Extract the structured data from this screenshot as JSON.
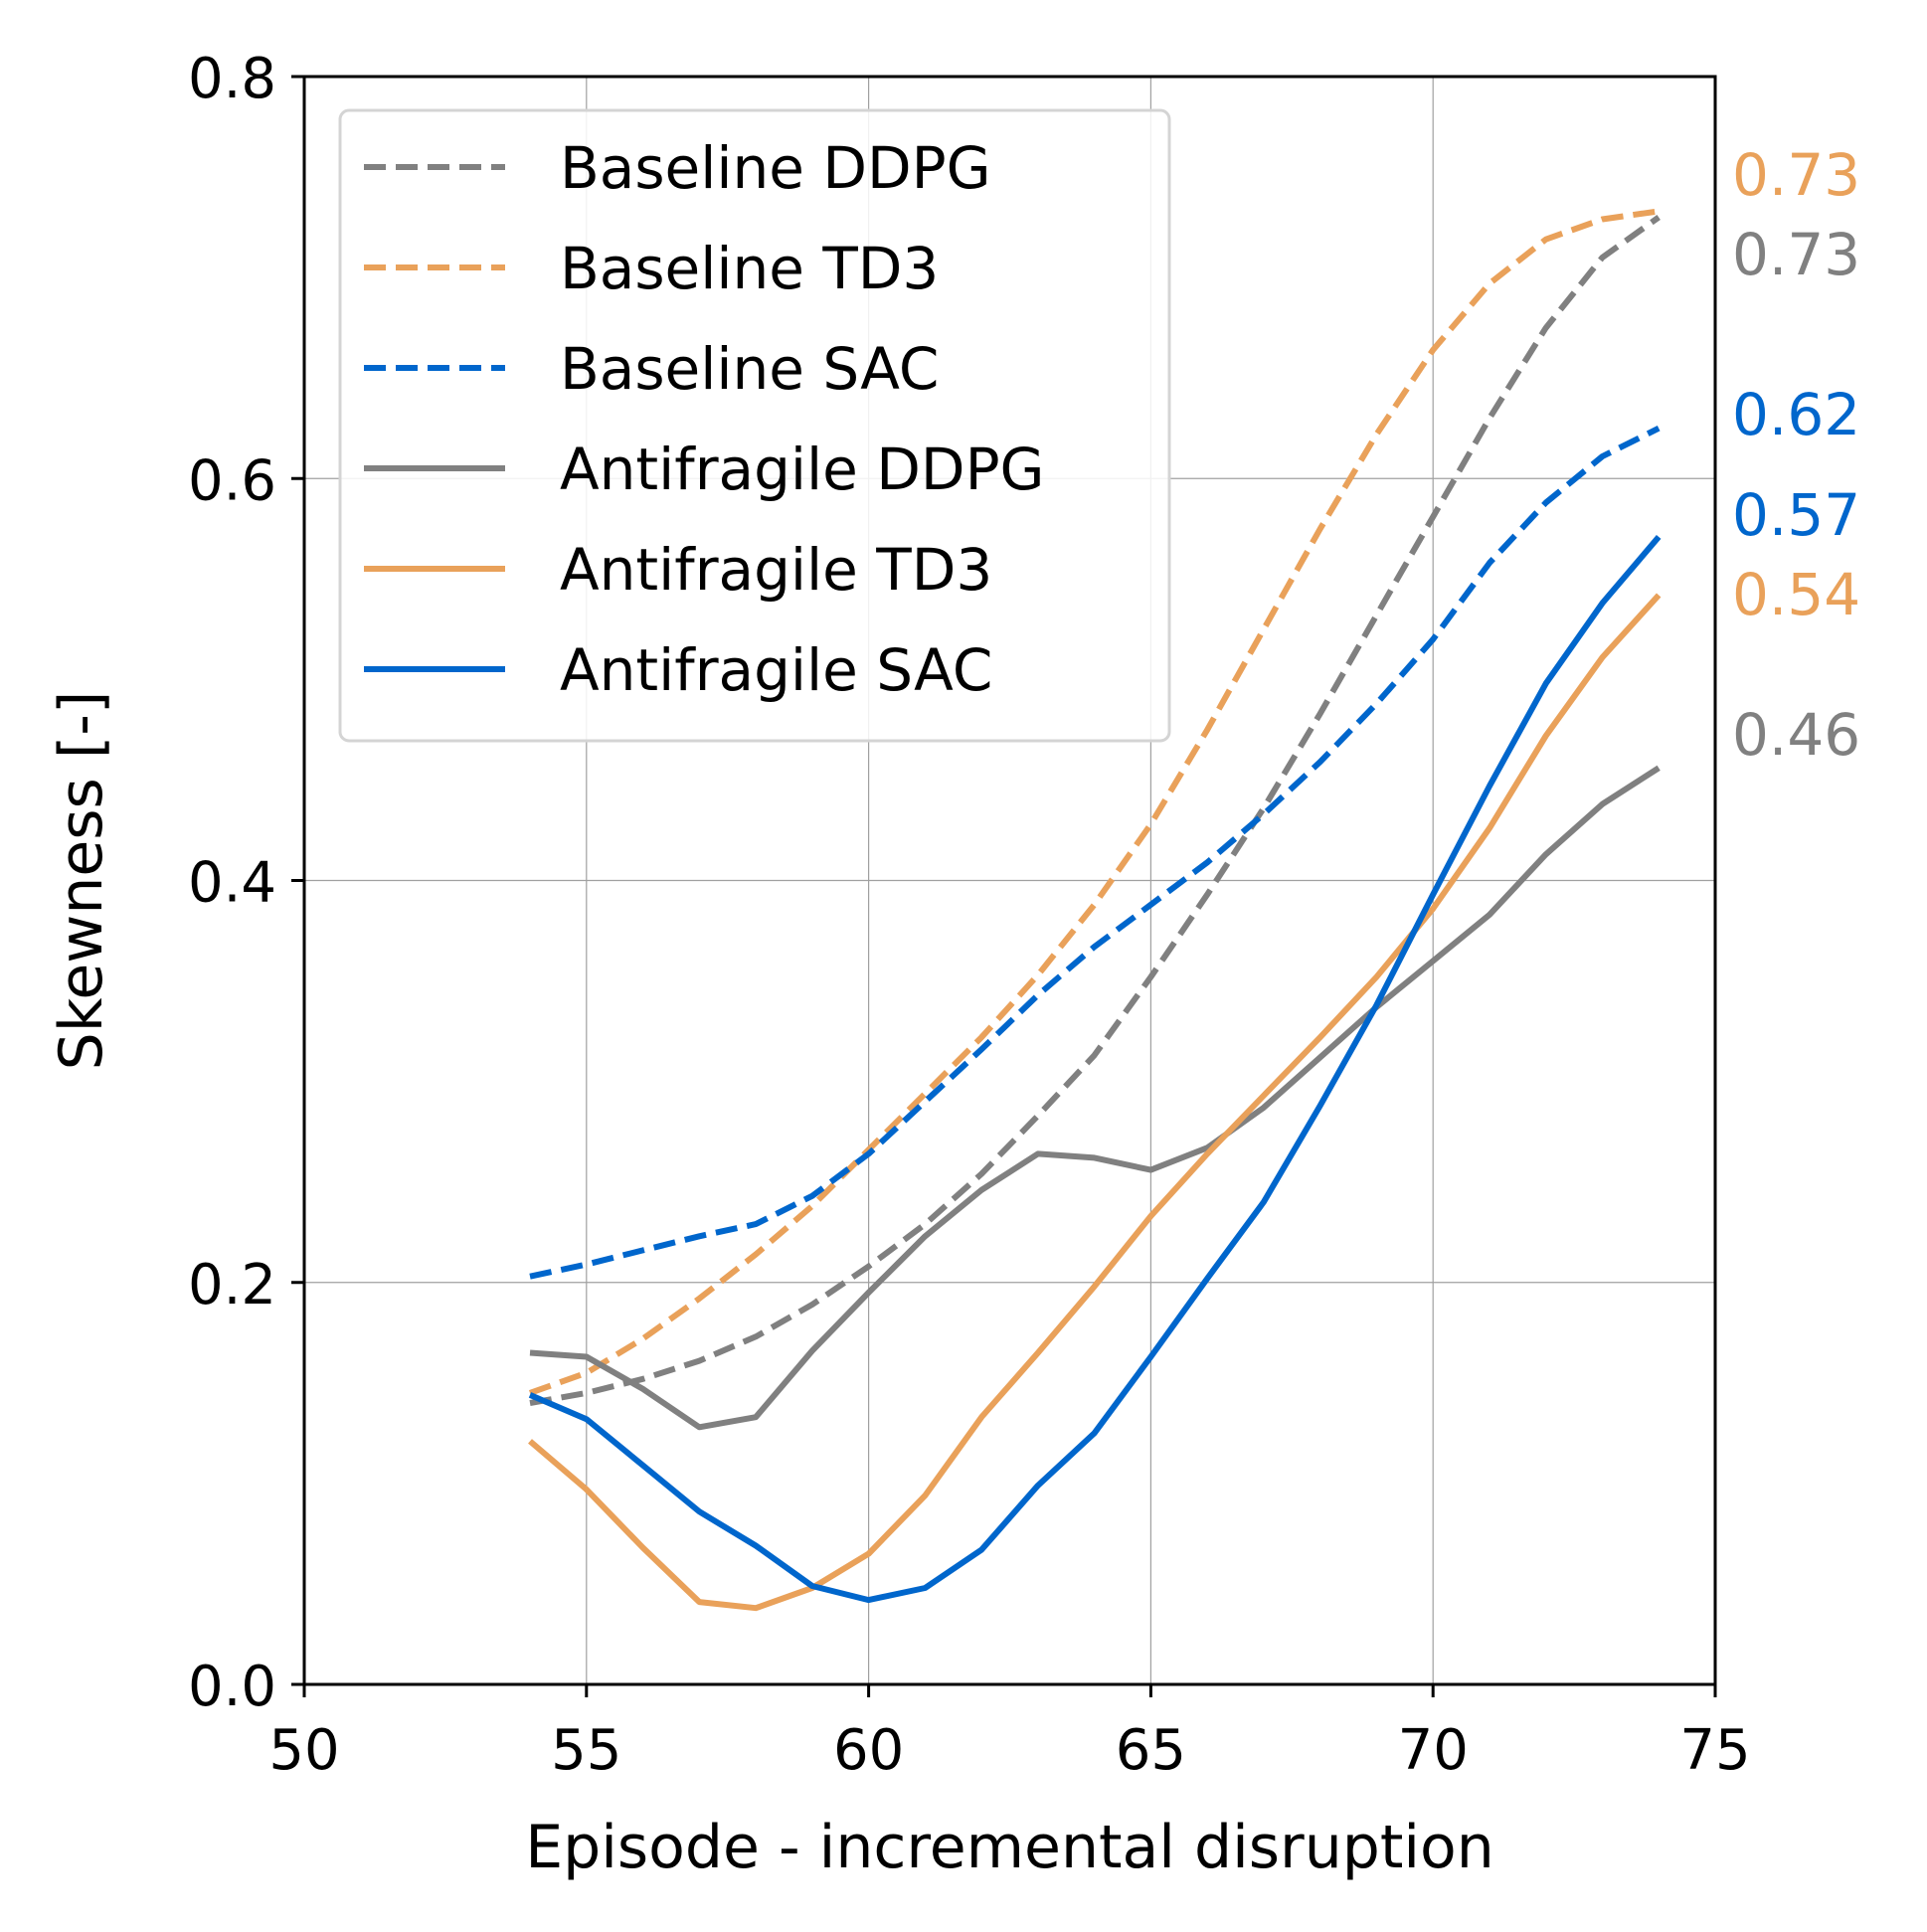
{
  "chart_data": {
    "type": "line",
    "title": "",
    "xlabel": "Episode - incremental disruption",
    "ylabel": "Skewness [-]",
    "xlim": [
      50,
      75
    ],
    "ylim": [
      0.0,
      0.8
    ],
    "xticks": [
      50,
      55,
      60,
      65,
      70,
      75
    ],
    "yticks": [
      0.0,
      0.2,
      0.4,
      0.6,
      0.8
    ],
    "xtick_labels": [
      "50",
      "55",
      "60",
      "65",
      "70",
      "75"
    ],
    "ytick_labels": [
      "0.0",
      "0.2",
      "0.4",
      "0.6",
      "0.8"
    ],
    "grid": true,
    "legend_position": "top-left",
    "x": [
      54,
      55,
      56,
      57,
      58,
      59,
      60,
      61,
      62,
      63,
      64,
      65,
      66,
      67,
      68,
      69,
      70,
      71,
      72,
      73,
      74
    ],
    "series": [
      {
        "name": "Baseline DDPG",
        "style": "dashed",
        "color": "#808080",
        "values": [
          0.14,
          0.145,
          0.152,
          0.161,
          0.173,
          0.189,
          0.208,
          0.229,
          0.254,
          0.283,
          0.313,
          0.352,
          0.393,
          0.436,
          0.483,
          0.532,
          0.581,
          0.63,
          0.675,
          0.71,
          0.73
        ],
        "end_label": "0.73"
      },
      {
        "name": "Baseline TD3",
        "style": "dashed",
        "color": "#E9A15A",
        "values": [
          0.145,
          0.155,
          0.172,
          0.192,
          0.214,
          0.238,
          0.266,
          0.294,
          0.322,
          0.353,
          0.388,
          0.428,
          0.475,
          0.525,
          0.575,
          0.622,
          0.664,
          0.697,
          0.719,
          0.729,
          0.733
        ],
        "end_label": "0.73"
      },
      {
        "name": "Baseline SAC",
        "style": "dashed",
        "color": "#0066CC",
        "values": [
          0.203,
          0.209,
          0.216,
          0.223,
          0.229,
          0.243,
          0.264,
          0.29,
          0.316,
          0.343,
          0.367,
          0.388,
          0.409,
          0.433,
          0.459,
          0.488,
          0.52,
          0.558,
          0.588,
          0.611,
          0.625
        ],
        "end_label": "0.62"
      },
      {
        "name": "Antifragile DDPG",
        "style": "solid",
        "color": "#808080",
        "values": [
          0.165,
          0.163,
          0.147,
          0.128,
          0.133,
          0.166,
          0.195,
          0.223,
          0.246,
          0.264,
          0.262,
          0.256,
          0.267,
          0.287,
          0.312,
          0.337,
          0.36,
          0.383,
          0.413,
          0.438,
          0.456
        ],
        "end_label": "0.46"
      },
      {
        "name": "Antifragile TD3",
        "style": "solid",
        "color": "#E9A15A",
        "values": [
          0.121,
          0.097,
          0.068,
          0.041,
          0.038,
          0.048,
          0.065,
          0.094,
          0.133,
          0.165,
          0.198,
          0.233,
          0.264,
          0.293,
          0.322,
          0.352,
          0.386,
          0.426,
          0.472,
          0.511,
          0.542
        ],
        "end_label": "0.54"
      },
      {
        "name": "Antifragile SAC",
        "style": "solid",
        "color": "#0066CC",
        "values": [
          0.144,
          0.132,
          0.109,
          0.086,
          0.069,
          0.049,
          0.042,
          0.048,
          0.067,
          0.099,
          0.125,
          0.163,
          0.202,
          0.24,
          0.288,
          0.338,
          0.393,
          0.447,
          0.498,
          0.538,
          0.571
        ],
        "end_label": "0.57"
      }
    ]
  }
}
